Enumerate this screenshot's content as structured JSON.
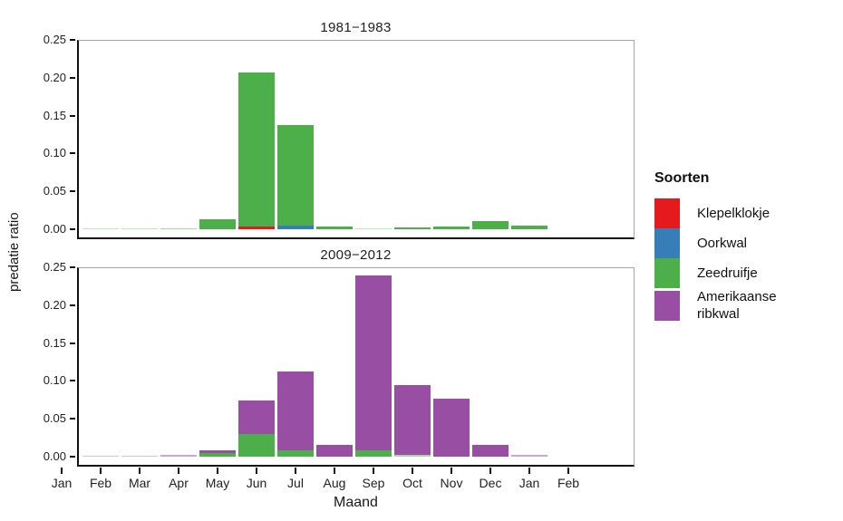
{
  "figure": {
    "ylabel": "predatie ratio",
    "xlabel": "Maand",
    "legend": {
      "title": "Soorten",
      "entries": [
        {
          "label": "Klepelklokje",
          "color": "#e41a1c"
        },
        {
          "label": "Oorkwal",
          "color": "#377eb8"
        },
        {
          "label": "Zeedruifje",
          "color": "#4daf4a"
        },
        {
          "label": "Amerikaanse ribkwal",
          "color": "#984ea3"
        }
      ]
    },
    "colors": {
      "axis": "#111111",
      "panel_border": "#a6a6a6",
      "background": "#ffffff"
    }
  },
  "chart_data": [
    {
      "type": "bar",
      "stacked": true,
      "title": "1981−1983",
      "categories": [
        "Jan",
        "Feb",
        "Mar",
        "Apr",
        "May",
        "Jun",
        "Jul",
        "Aug",
        "Sep",
        "Oct",
        "Nov",
        "Dec",
        "Jan",
        "Feb"
      ],
      "series": [
        {
          "name": "Klepelklokje",
          "color": "#e41a1c",
          "values": [
            0,
            0,
            0,
            0,
            0,
            0.004,
            0,
            0,
            0,
            0,
            0,
            0,
            0,
            0
          ]
        },
        {
          "name": "Oorkwal",
          "color": "#377eb8",
          "values": [
            0,
            0,
            0,
            0,
            0,
            0,
            0.005,
            0,
            0,
            0,
            0,
            0,
            0,
            0
          ]
        },
        {
          "name": "Zeedruifje",
          "color": "#4daf4a",
          "values": [
            0,
            0.001,
            0.001,
            0.0015,
            0.013,
            0.203,
            0.133,
            0.004,
            0.001,
            0.003,
            0.004,
            0.011,
            0.005,
            0
          ]
        },
        {
          "name": "Amerikaanse ribkwal",
          "color": "#984ea3",
          "values": [
            0,
            0,
            0,
            0,
            0,
            0,
            0,
            0,
            0,
            0,
            0,
            0,
            0,
            0
          ]
        }
      ],
      "ylabel": "predatie ratio",
      "xlabel": "Maand",
      "ylim": [
        0,
        0.25
      ],
      "yticks": [
        0,
        0.05,
        0.1,
        0.15,
        0.2,
        0.25
      ],
      "grid": false,
      "legend_position": "right"
    },
    {
      "type": "bar",
      "stacked": true,
      "title": "2009−2012",
      "categories": [
        "Jan",
        "Feb",
        "Mar",
        "Apr",
        "May",
        "Jun",
        "Jul",
        "Aug",
        "Sep",
        "Oct",
        "Nov",
        "Dec",
        "Jan",
        "Feb"
      ],
      "series": [
        {
          "name": "Klepelklokje",
          "color": "#e41a1c",
          "values": [
            0,
            0,
            0,
            0,
            0,
            0,
            0,
            0,
            0,
            0,
            0,
            0,
            0,
            0
          ]
        },
        {
          "name": "Oorkwal",
          "color": "#377eb8",
          "values": [
            0,
            0,
            0,
            0,
            0,
            0,
            0,
            0,
            0,
            0,
            0,
            0,
            0,
            0
          ]
        },
        {
          "name": "Zeedruifje",
          "color": "#4daf4a",
          "values": [
            0,
            0,
            0,
            0,
            0.005,
            0.03,
            0.008,
            0,
            0.008,
            0.002,
            0,
            0,
            0,
            0
          ]
        },
        {
          "name": "Amerikaanse ribkwal",
          "color": "#984ea3",
          "values": [
            0,
            0.001,
            0.001,
            0.002,
            0.003,
            0.044,
            0.105,
            0.016,
            0.231,
            0.092,
            0.077,
            0.016,
            0.002,
            0
          ]
        }
      ],
      "ylabel": "predatie ratio",
      "xlabel": "Maand",
      "ylim": [
        0,
        0.25
      ],
      "yticks": [
        0,
        0.05,
        0.1,
        0.15,
        0.2,
        0.25
      ],
      "grid": false,
      "legend_position": "right"
    }
  ]
}
